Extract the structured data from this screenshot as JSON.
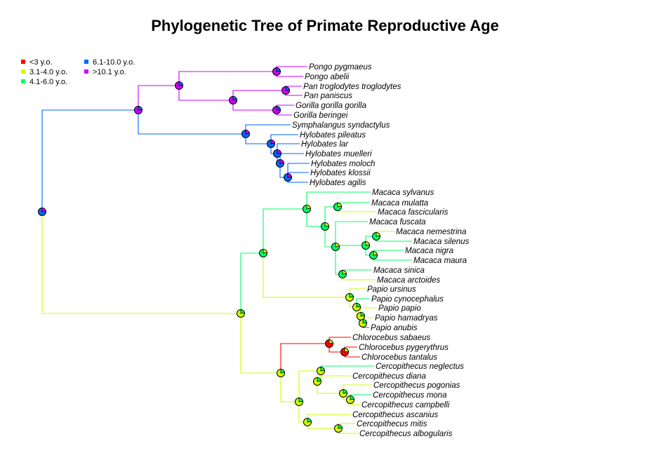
{
  "title": "Phylogenetic Tree of Primate Reproductive Age",
  "legend": [
    {
      "label": "<3 y.o.",
      "color": "#ff0000"
    },
    {
      "label": "3.1-4.0 y.o.",
      "color": "#ccff00"
    },
    {
      "label": "4.1-6.0 y.o.",
      "color": "#00ff66"
    },
    {
      "label": "6.1-10.0 y.o.",
      "color": "#0066ff"
    },
    {
      "label": ">10.1 y.o.",
      "color": "#cc00ff"
    }
  ],
  "species": [
    "Pongo pygmaeus",
    "Pongo abelii",
    "Pan troglodytes troglodytes",
    "Pan paniscus",
    "Gorilla gorilla gorilla",
    "Gorilla beringei",
    "Symphalangus syndactylus",
    "Hylobates pileatus",
    "Hylobates lar",
    "Hylobates muelleri",
    "Hylobates moloch",
    "Hylobates klossii",
    "Hylobates agilis",
    "Macaca sylvanus",
    "Macaca mulatta",
    "Macaca fascicularis",
    "Macaca fuscata",
    "Macaca nemestrina",
    "Macaca silenus",
    "Macaca nigra",
    "Macaca maura",
    "Macaca sinica",
    "Macaca arctoides",
    "Papio ursinus",
    "Papio cynocephalus",
    "Papio papio",
    "Papio hamadryas",
    "Papio anubis",
    "Chlorocebus sabaeus",
    "Chlorocebus pygerythrus",
    "Chlorocebus tantalus",
    "Cercopithecus neglectus",
    "Cercopithecus diana",
    "Cercopithecus pogonias",
    "Cercopithecus mona",
    "Cercopithecus campbelli",
    "Cercopithecus ascanius",
    "Cercopithecus mitis",
    "Cercopithecus albogularis"
  ]
}
